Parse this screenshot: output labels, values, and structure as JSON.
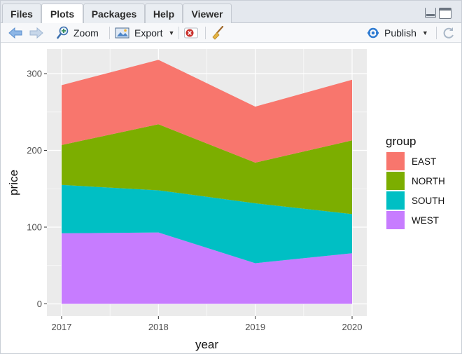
{
  "tabs": [
    {
      "label": "Files",
      "active": false
    },
    {
      "label": "Plots",
      "active": true
    },
    {
      "label": "Packages",
      "active": false
    },
    {
      "label": "Help",
      "active": false
    },
    {
      "label": "Viewer",
      "active": false
    }
  ],
  "toolbar": {
    "zoom_label": "Zoom",
    "export_label": "Export",
    "publish_label": "Publish"
  },
  "colors": {
    "EAST": "#F8766D",
    "NORTH": "#7CAE00",
    "SOUTH": "#00BFC4",
    "WEST": "#C77CFF",
    "panel_bg": "#EBEBEB",
    "accent_blue": "#2f7bd1"
  },
  "chart_data": {
    "type": "area",
    "stacked": true,
    "x": [
      2017,
      2018,
      2019,
      2020
    ],
    "xlabel": "year",
    "ylabel": "price",
    "ylim": [
      0,
      320
    ],
    "yticks": [
      0,
      100,
      200,
      300
    ],
    "xticks": [
      "2017",
      "2018",
      "2019",
      "2020"
    ],
    "grid": true,
    "legend_title": "group",
    "legend_position": "right",
    "series": [
      {
        "name": "EAST",
        "values": [
          78,
          84,
          73,
          79
        ]
      },
      {
        "name": "NORTH",
        "values": [
          52,
          86,
          53,
          96
        ]
      },
      {
        "name": "SOUTH",
        "values": [
          63,
          55,
          78,
          51
        ]
      },
      {
        "name": "WEST",
        "values": [
          92,
          93,
          53,
          66
        ]
      }
    ]
  }
}
